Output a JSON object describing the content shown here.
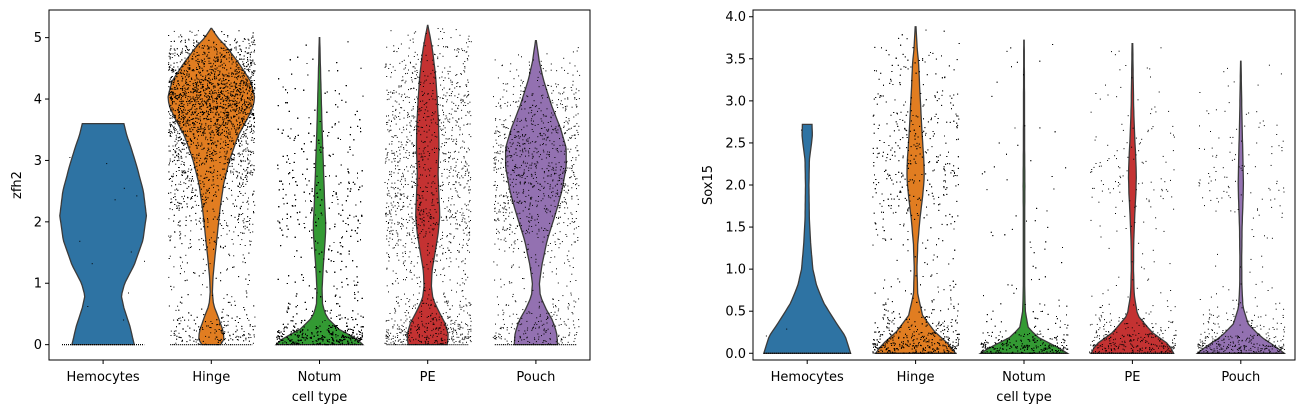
{
  "chart_data": [
    {
      "type": "violin",
      "xlabel": "cell type",
      "ylabel": "zfh2",
      "ylim": [
        -0.25,
        5.45
      ],
      "yticks": [
        0,
        1,
        2,
        3,
        4,
        5
      ],
      "ytick_labels": [
        "0",
        "1",
        "2",
        "3",
        "4",
        "5"
      ],
      "categories": [
        "Hemocytes",
        "Hinge",
        "Notum",
        "PE",
        "Pouch"
      ],
      "colors": [
        "#2e73a3",
        "#e17d21",
        "#339a33",
        "#c43232",
        "#9371b1"
      ],
      "grid": false,
      "violins": [
        {
          "name": "Hemocytes",
          "min": 0,
          "max": 3.6,
          "points": 12,
          "density": [
            [
              0,
              0.72
            ],
            [
              0.3,
              0.62
            ],
            [
              0.6,
              0.48
            ],
            [
              0.8,
              0.42
            ],
            [
              1.0,
              0.5
            ],
            [
              1.3,
              0.72
            ],
            [
              1.7,
              0.92
            ],
            [
              2.1,
              1.0
            ],
            [
              2.5,
              0.93
            ],
            [
              2.9,
              0.78
            ],
            [
              3.2,
              0.65
            ],
            [
              3.4,
              0.55
            ],
            [
              3.6,
              0.48
            ]
          ]
        },
        {
          "name": "Hinge",
          "min": 0,
          "max": 5.15,
          "points": 4200,
          "density": [
            [
              0,
              0.22
            ],
            [
              0.1,
              0.3
            ],
            [
              0.25,
              0.26
            ],
            [
              0.45,
              0.16
            ],
            [
              0.65,
              0.05
            ],
            [
              0.85,
              0.025
            ],
            [
              1.1,
              0.04
            ],
            [
              1.4,
              0.08
            ],
            [
              1.8,
              0.14
            ],
            [
              2.2,
              0.2
            ],
            [
              2.6,
              0.28
            ],
            [
              3.0,
              0.42
            ],
            [
              3.4,
              0.62
            ],
            [
              3.7,
              0.85
            ],
            [
              3.9,
              0.98
            ],
            [
              4.05,
              1.0
            ],
            [
              4.3,
              0.9
            ],
            [
              4.6,
              0.62
            ],
            [
              4.85,
              0.35
            ],
            [
              5.0,
              0.15
            ],
            [
              5.15,
              0.01
            ]
          ]
        },
        {
          "name": "Notum",
          "min": 0,
          "max": 5.0,
          "points": 3000,
          "density": [
            [
              0,
              1.0
            ],
            [
              0.1,
              0.85
            ],
            [
              0.25,
              0.45
            ],
            [
              0.45,
              0.16
            ],
            [
              0.65,
              0.07
            ],
            [
              0.9,
              0.06
            ],
            [
              1.2,
              0.08
            ],
            [
              1.5,
              0.11
            ],
            [
              1.8,
              0.14
            ],
            [
              2.0,
              0.14
            ],
            [
              2.3,
              0.12
            ],
            [
              2.7,
              0.1
            ],
            [
              3.1,
              0.08
            ],
            [
              3.5,
              0.06
            ],
            [
              3.9,
              0.045
            ],
            [
              4.3,
              0.03
            ],
            [
              4.7,
              0.015
            ],
            [
              5.0,
              0.005
            ]
          ]
        },
        {
          "name": "PE",
          "min": 0,
          "max": 5.2,
          "points": 1600,
          "density": [
            [
              0,
              0.45
            ],
            [
              0.15,
              0.48
            ],
            [
              0.35,
              0.4
            ],
            [
              0.55,
              0.25
            ],
            [
              0.75,
              0.12
            ],
            [
              0.95,
              0.085
            ],
            [
              1.2,
              0.1
            ],
            [
              1.5,
              0.17
            ],
            [
              1.8,
              0.24
            ],
            [
              2.1,
              0.28
            ],
            [
              2.4,
              0.26
            ],
            [
              2.8,
              0.24
            ],
            [
              3.2,
              0.26
            ],
            [
              3.6,
              0.25
            ],
            [
              4.0,
              0.22
            ],
            [
              4.4,
              0.18
            ],
            [
              4.8,
              0.11
            ],
            [
              5.0,
              0.06
            ],
            [
              5.2,
              0.005
            ]
          ]
        },
        {
          "name": "Pouch",
          "min": 0,
          "max": 4.95,
          "points": 1200,
          "density": [
            [
              0,
              0.5
            ],
            [
              0.2,
              0.48
            ],
            [
              0.4,
              0.38
            ],
            [
              0.6,
              0.22
            ],
            [
              0.8,
              0.1
            ],
            [
              1.0,
              0.08
            ],
            [
              1.3,
              0.14
            ],
            [
              1.7,
              0.26
            ],
            [
              2.1,
              0.44
            ],
            [
              2.5,
              0.6
            ],
            [
              2.9,
              0.7
            ],
            [
              3.2,
              0.7
            ],
            [
              3.5,
              0.58
            ],
            [
              3.9,
              0.36
            ],
            [
              4.3,
              0.18
            ],
            [
              4.6,
              0.08
            ],
            [
              4.95,
              0.01
            ]
          ]
        }
      ]
    },
    {
      "type": "violin",
      "xlabel": "cell type",
      "ylabel": "Sox15",
      "ylim": [
        -0.08,
        4.08
      ],
      "yticks": [
        0.0,
        0.5,
        1.0,
        1.5,
        2.0,
        2.5,
        3.0,
        3.5,
        4.0
      ],
      "ytick_labels": [
        "0.0",
        "0.5",
        "1.0",
        "1.5",
        "2.0",
        "2.5",
        "3.0",
        "3.5",
        "4.0"
      ],
      "categories": [
        "Hemocytes",
        "Hinge",
        "Notum",
        "PE",
        "Pouch"
      ],
      "colors": [
        "#2e73a3",
        "#e17d21",
        "#339a33",
        "#c43232",
        "#9371b1"
      ],
      "grid": false,
      "violins": [
        {
          "name": "Hemocytes",
          "min": 0,
          "max": 2.72,
          "points": 3,
          "density": [
            [
              0,
              1.0
            ],
            [
              0.2,
              0.88
            ],
            [
              0.4,
              0.62
            ],
            [
              0.6,
              0.38
            ],
            [
              0.8,
              0.22
            ],
            [
              1.0,
              0.13
            ],
            [
              1.3,
              0.08
            ],
            [
              1.6,
              0.05
            ],
            [
              2.0,
              0.04
            ],
            [
              2.3,
              0.05
            ],
            [
              2.5,
              0.1
            ],
            [
              2.6,
              0.12
            ],
            [
              2.72,
              0.11
            ]
          ]
        },
        {
          "name": "Hinge",
          "min": 0,
          "max": 3.88,
          "points": 1800,
          "density": [
            [
              0,
              0.92
            ],
            [
              0.1,
              0.78
            ],
            [
              0.25,
              0.45
            ],
            [
              0.45,
              0.16
            ],
            [
              0.7,
              0.05
            ],
            [
              1.0,
              0.03
            ],
            [
              1.3,
              0.05
            ],
            [
              1.6,
              0.1
            ],
            [
              1.9,
              0.17
            ],
            [
              2.1,
              0.2
            ],
            [
              2.3,
              0.19
            ],
            [
              2.6,
              0.15
            ],
            [
              2.9,
              0.12
            ],
            [
              3.2,
              0.09
            ],
            [
              3.45,
              0.07
            ],
            [
              3.6,
              0.04
            ],
            [
              3.88,
              0.01
            ]
          ]
        },
        {
          "name": "Notum",
          "min": 0,
          "max": 3.72,
          "points": 700,
          "density": [
            [
              0,
              1.0
            ],
            [
              0.08,
              0.75
            ],
            [
              0.18,
              0.35
            ],
            [
              0.3,
              0.1
            ],
            [
              0.5,
              0.03
            ],
            [
              0.8,
              0.015
            ],
            [
              1.2,
              0.015
            ],
            [
              1.6,
              0.015
            ],
            [
              2.0,
              0.02
            ],
            [
              2.4,
              0.015
            ],
            [
              2.8,
              0.012
            ],
            [
              3.2,
              0.01
            ],
            [
              3.72,
              0.005
            ]
          ]
        },
        {
          "name": "PE",
          "min": 0,
          "max": 3.68,
          "points": 450,
          "density": [
            [
              0,
              0.95
            ],
            [
              0.1,
              0.85
            ],
            [
              0.25,
              0.45
            ],
            [
              0.45,
              0.12
            ],
            [
              0.7,
              0.04
            ],
            [
              1.0,
              0.025
            ],
            [
              1.3,
              0.03
            ],
            [
              1.6,
              0.05
            ],
            [
              1.9,
              0.08
            ],
            [
              2.1,
              0.09
            ],
            [
              2.3,
              0.08
            ],
            [
              2.6,
              0.05
            ],
            [
              2.9,
              0.03
            ],
            [
              3.2,
              0.02
            ],
            [
              3.68,
              0.008
            ]
          ]
        },
        {
          "name": "Pouch",
          "min": 0,
          "max": 3.47,
          "points": 450,
          "density": [
            [
              0,
              1.0
            ],
            [
              0.08,
              0.8
            ],
            [
              0.2,
              0.45
            ],
            [
              0.35,
              0.17
            ],
            [
              0.55,
              0.05
            ],
            [
              0.8,
              0.025
            ],
            [
              1.1,
              0.02
            ],
            [
              1.5,
              0.03
            ],
            [
              1.8,
              0.05
            ],
            [
              2.0,
              0.06
            ],
            [
              2.3,
              0.05
            ],
            [
              2.6,
              0.035
            ],
            [
              3.0,
              0.02
            ],
            [
              3.47,
              0.005
            ]
          ]
        }
      ]
    }
  ]
}
